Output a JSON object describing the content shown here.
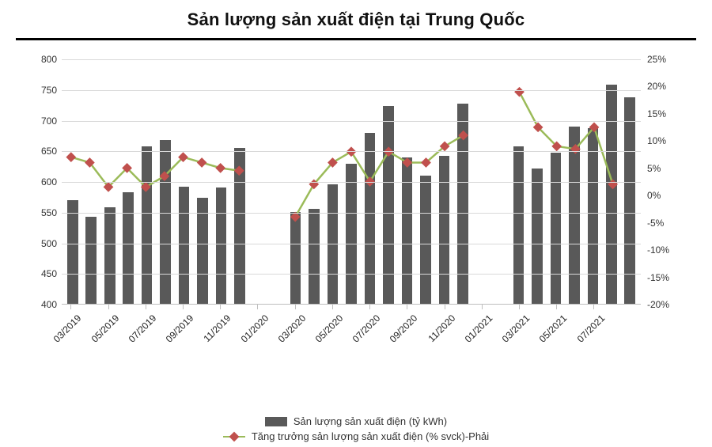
{
  "title": "Sản lượng sản xuất điện tại Trung Quốc",
  "title_fontsize": 22,
  "title_color": "#111111",
  "background_color": "#ffffff",
  "grid_color": "#d9d9d9",
  "axis_color": "#bfbfbf",
  "bar_color": "#595959",
  "line_color": "#9bbb59",
  "marker_color": "#c0504d",
  "line_width": 2.5,
  "marker_size": 9,
  "left_axis": {
    "min": 400,
    "max": 800,
    "step": 50
  },
  "right_axis": {
    "min": -20,
    "max": 25,
    "step": 5,
    "suffix": "%"
  },
  "x_tick_labels": [
    "03/2019",
    "05/2019",
    "07/2019",
    "09/2019",
    "11/2019",
    "01/2020",
    "03/2020",
    "05/2020",
    "07/2020",
    "09/2020",
    "11/2020",
    "01/2021",
    "03/2021",
    "05/2021",
    "07/2021"
  ],
  "label_fontsize": 12,
  "legend": {
    "bar": "Sản lượng sản xuất điện (tỷ kWh)",
    "line": "Tăng trưởng sản lượng sản xuất điện (% svck)-Phải"
  },
  "data": [
    {
      "bar": 570,
      "line": 7,
      "xl": "03/2019"
    },
    {
      "bar": 543,
      "line": 6,
      "xl": null
    },
    {
      "bar": 558,
      "line": 1.5,
      "xl": "05/2019"
    },
    {
      "bar": 582,
      "line": 5,
      "xl": null
    },
    {
      "bar": 658,
      "line": 1.5,
      "xl": "07/2019"
    },
    {
      "bar": 668,
      "line": 3.5,
      "xl": null
    },
    {
      "bar": 592,
      "line": 7,
      "xl": "09/2019"
    },
    {
      "bar": 573,
      "line": 6,
      "xl": null
    },
    {
      "bar": 590,
      "line": 5,
      "xl": "11/2019"
    },
    {
      "bar": 655,
      "line": 4.5,
      "xl": null
    },
    {
      "bar": null,
      "line": null,
      "xl": "01/2020"
    },
    {
      "bar": null,
      "line": null,
      "xl": null
    },
    {
      "bar": 550,
      "line": -4,
      "xl": "03/2020"
    },
    {
      "bar": 555,
      "line": 2,
      "xl": null
    },
    {
      "bar": 595,
      "line": 6,
      "xl": "05/2020"
    },
    {
      "bar": 629,
      "line": 8,
      "xl": null
    },
    {
      "bar": 680,
      "line": 2.5,
      "xl": "07/2020"
    },
    {
      "bar": 724,
      "line": 8,
      "xl": null
    },
    {
      "bar": 640,
      "line": 6,
      "xl": "09/2020"
    },
    {
      "bar": 610,
      "line": 6,
      "xl": null
    },
    {
      "bar": 642,
      "line": 9,
      "xl": "11/2020"
    },
    {
      "bar": 728,
      "line": 11,
      "xl": null
    },
    {
      "bar": null,
      "line": null,
      "xl": "01/2021"
    },
    {
      "bar": null,
      "line": null,
      "xl": null
    },
    {
      "bar": 657,
      "line": 19,
      "xl": "03/2021"
    },
    {
      "bar": 622,
      "line": 12.5,
      "xl": null
    },
    {
      "bar": 647,
      "line": 9,
      "xl": "05/2021"
    },
    {
      "bar": 690,
      "line": 8.5,
      "xl": null
    },
    {
      "bar": 688,
      "line": 12.5,
      "xl": "07/2021"
    },
    {
      "bar": 759,
      "line": 2,
      "xl": null
    },
    {
      "bar": 738,
      "line": null,
      "xl": null
    }
  ]
}
